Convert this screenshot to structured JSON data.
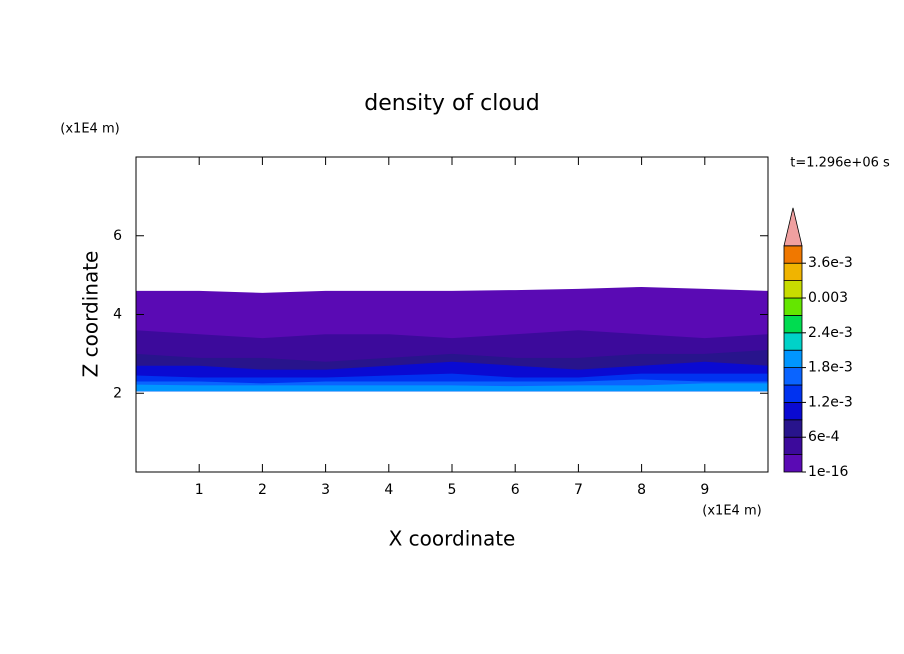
{
  "chart_data": {
    "type": "contour",
    "title": "density of cloud",
    "x_label": "X coordinate",
    "y_label": "Z coordinate",
    "x_unit": "(x1E4 m)",
    "y_unit": "(x1E4 m)",
    "time_label": "t=1.296e+06 s",
    "xlim": [
      0,
      10
    ],
    "ylim": [
      0,
      8
    ],
    "xticks": [
      1,
      2,
      3,
      4,
      5,
      6,
      7,
      8,
      9
    ],
    "yticks": [
      2,
      4,
      6
    ],
    "x": [
      0,
      1,
      2,
      3,
      4,
      5,
      6,
      7,
      8,
      9,
      10
    ],
    "bottom": 2.05,
    "levels": [
      1e-16,
      0.0003,
      0.0006,
      0.0009,
      0.0012,
      0.0015,
      0.0018,
      0.0021,
      0.0024,
      0.0027,
      0.003,
      0.0033,
      0.0036,
      0.0039
    ],
    "level_colors": [
      "#5a0ab4",
      "#3c0a9b",
      "#28148c",
      "#0a0ad2",
      "#0032f0",
      "#0a64ff",
      "#0096ff",
      "#00d2c8",
      "#00dc50",
      "#64e600",
      "#c8dc00",
      "#f0b400",
      "#f07800",
      "#f02828"
    ],
    "extend_color": "#f0a0a0",
    "cbar_ticks": [
      {
        "value": 1e-16,
        "label": "1e-16"
      },
      {
        "value": 0.0006,
        "label": "6e-4"
      },
      {
        "value": 0.0012,
        "label": "1.2e-3"
      },
      {
        "value": 0.0018,
        "label": "1.8e-3"
      },
      {
        "value": 0.0024,
        "label": "2.4e-3"
      },
      {
        "value": 0.003,
        "label": "0.003"
      },
      {
        "value": 0.0036,
        "label": "3.6e-3"
      }
    ],
    "layers": [
      {
        "level": 1e-16,
        "top": [
          4.6,
          4.6,
          4.55,
          4.6,
          4.6,
          4.6,
          4.62,
          4.65,
          4.7,
          4.65,
          4.6
        ]
      },
      {
        "level": 0.0003,
        "top": [
          3.6,
          3.5,
          3.4,
          3.5,
          3.5,
          3.4,
          3.5,
          3.6,
          3.5,
          3.4,
          3.5
        ]
      },
      {
        "level": 0.0006,
        "top": [
          3.0,
          2.9,
          2.9,
          2.8,
          2.9,
          3.0,
          2.9,
          2.9,
          3.0,
          3.0,
          3.1
        ]
      },
      {
        "level": 0.0009,
        "top": [
          2.7,
          2.7,
          2.6,
          2.6,
          2.7,
          2.8,
          2.7,
          2.6,
          2.7,
          2.8,
          2.7
        ]
      },
      {
        "level": 0.0012,
        "top": [
          2.45,
          2.4,
          2.4,
          2.4,
          2.45,
          2.5,
          2.4,
          2.4,
          2.5,
          2.5,
          2.5
        ]
      },
      {
        "level": 0.0015,
        "top": [
          2.3,
          2.3,
          2.25,
          2.3,
          2.3,
          2.3,
          2.3,
          2.3,
          2.35,
          2.3,
          2.3
        ]
      },
      {
        "level": 0.0018,
        "top": [
          2.22,
          2.2,
          2.2,
          2.2,
          2.2,
          2.2,
          2.18,
          2.2,
          2.2,
          2.25,
          2.25
        ]
      }
    ]
  }
}
